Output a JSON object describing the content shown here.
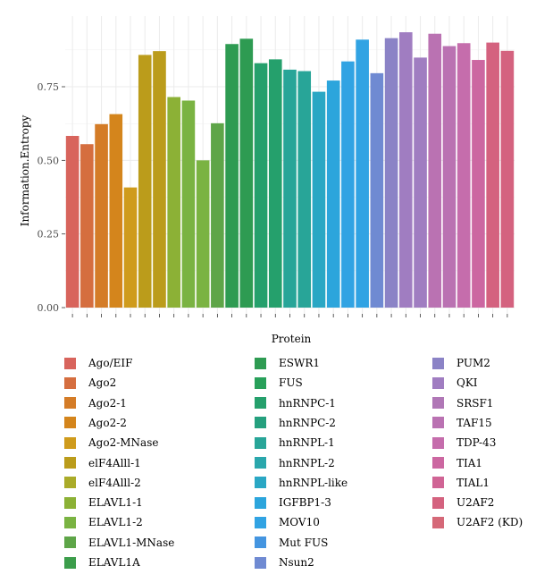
{
  "chart_data": {
    "type": "bar",
    "xlabel": "Protein",
    "ylabel": "Information.Entropy",
    "ylim": [
      0,
      1.0
    ],
    "yticks": [
      "0.00",
      "0.25",
      "0.50",
      "0.75"
    ],
    "grid": true,
    "legend_placement": "bottom",
    "legend": [
      {
        "name": "Ago/EIF",
        "color": "#D8645C"
      },
      {
        "name": "Ago2",
        "color": "#D56E3F"
      },
      {
        "name": "Ago2-1",
        "color": "#D47C27"
      },
      {
        "name": "Ago2-2",
        "color": "#D4851C"
      },
      {
        "name": "Ago2-MNase",
        "color": "#CF9B1C"
      },
      {
        "name": "elF4Alll-1",
        "color": "#BB9C1B"
      },
      {
        "name": "elF4Alll-2",
        "color": "#AAAB29"
      },
      {
        "name": "ELAVL1-1",
        "color": "#8CB136"
      },
      {
        "name": "ELAVL1-2",
        "color": "#7AB342"
      },
      {
        "name": "ELAVL1-MNase",
        "color": "#5EA548"
      },
      {
        "name": "ELAVL1A",
        "color": "#3C9D4B"
      },
      {
        "name": "ESWR1",
        "color": "#2E9B52"
      },
      {
        "name": "FUS",
        "color": "#28A05A"
      },
      {
        "name": "hnRNPC-1",
        "color": "#25A06C"
      },
      {
        "name": "hnRNPC-2",
        "color": "#25A07E"
      },
      {
        "name": "hnRNPL-1",
        "color": "#28A598"
      },
      {
        "name": "hnRNPL-2",
        "color": "#2AA7AC"
      },
      {
        "name": "hnRNPL-like",
        "color": "#2AA7C4"
      },
      {
        "name": "IGFBP1-3",
        "color": "#2CA5DC"
      },
      {
        "name": "MOV10",
        "color": "#31A3E3"
      },
      {
        "name": "Mut FUS",
        "color": "#4495E0"
      },
      {
        "name": "Nsun2",
        "color": "#6F8AD2"
      },
      {
        "name": "PUM2",
        "color": "#8B83C6"
      },
      {
        "name": "QKI",
        "color": "#A07DC1"
      },
      {
        "name": "SRSF1",
        "color": "#B077B6"
      },
      {
        "name": "TAF15",
        "color": "#BA72B2"
      },
      {
        "name": "TDP-43",
        "color": "#C56DAC"
      },
      {
        "name": "TIA1",
        "color": "#CC67A1"
      },
      {
        "name": "TIAL1",
        "color": "#D06495"
      },
      {
        "name": "U2AF2",
        "color": "#D4627F"
      },
      {
        "name": "U2AF2 (KD)",
        "color": "#D56878"
      }
    ],
    "values": [
      0.583,
      0.555,
      0.623,
      0.657,
      0.408,
      0.858,
      0.871,
      0.715,
      0.703,
      0.5,
      0.626,
      0.895,
      0.913,
      0.83,
      0.843,
      0.808,
      0.803,
      0.733,
      0.771,
      0.836,
      0.91,
      0.796,
      0.915,
      0.935,
      0.849,
      0.93,
      0.888,
      0.898,
      0.841,
      0.9,
      0.872
    ],
    "bar_colors": [
      "#D8645C",
      "#D56E3F",
      "#D47C27",
      "#D4851C",
      "#CF9B1C",
      "#BB9C1B",
      "#BB9C1B",
      "#8CB136",
      "#7AB342",
      "#7AB342",
      "#5EA548",
      "#2E9B52",
      "#2E9B52",
      "#25A06C",
      "#25A06C",
      "#28A598",
      "#28A598",
      "#2AA7C4",
      "#2CA5DC",
      "#31A3E3",
      "#31A3E3",
      "#6F8AD2",
      "#8B83C6",
      "#A07DC1",
      "#A07DC1",
      "#BA72B2",
      "#BA72B2",
      "#C56DAC",
      "#CC67A1",
      "#D4627F",
      "#D4627F"
    ]
  }
}
